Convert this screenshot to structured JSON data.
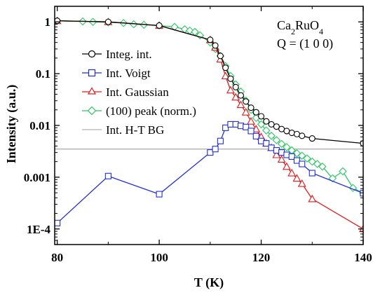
{
  "chart_data": {
    "type": "scatter",
    "xlabel": "T (K)",
    "ylabel": "Intensity (a.u.)",
    "xlim": [
      79.5,
      140
    ],
    "ylim": [
      5e-05,
      2
    ],
    "yscale": "log",
    "grid": false,
    "legend_position": "left-middle",
    "x_ticks": [
      80,
      100,
      120,
      140
    ],
    "x_tick_labels": [
      "80",
      "100",
      "120",
      "140"
    ],
    "y_ticks": [
      0.0001,
      0.001,
      0.01,
      0.1,
      1
    ],
    "y_tick_labels": [
      "1E-4",
      "0.001",
      "0.01",
      "0.1",
      "1"
    ],
    "annotation": {
      "compound": "Ca",
      "sub1": "2",
      "mid": "RuO",
      "sub2": "4",
      "q": "Q = (1 0 0)"
    },
    "series": [
      {
        "name": "Integ. int.",
        "color": "#000000",
        "marker": "circle",
        "x": [
          80,
          90,
          100,
          110,
          111,
          112,
          113,
          114,
          115,
          116,
          117,
          118,
          119,
          120,
          121,
          122,
          123,
          124,
          125,
          126,
          127,
          128,
          130,
          140
        ],
        "y": [
          1.05,
          1.0,
          0.85,
          0.45,
          0.35,
          0.22,
          0.13,
          0.08,
          0.055,
          0.038,
          0.029,
          0.022,
          0.018,
          0.015,
          0.012,
          0.0105,
          0.0095,
          0.0085,
          0.0078,
          0.0072,
          0.0068,
          0.0063,
          0.0056,
          0.0045
        ]
      },
      {
        "name": "Int. Voigt",
        "color": "#1f2fd6",
        "marker": "square",
        "x": [
          80,
          90,
          100,
          110,
          111,
          112,
          113,
          114,
          115,
          116,
          117,
          118,
          119,
          120,
          121,
          122,
          123,
          124,
          125,
          126,
          127,
          128,
          130,
          140
        ],
        "y": [
          0.00013,
          0.00105,
          0.00047,
          0.003,
          0.0035,
          0.005,
          0.009,
          0.0105,
          0.0105,
          0.0098,
          0.0093,
          0.0078,
          0.0062,
          0.005,
          0.0045,
          0.0037,
          0.0033,
          0.003,
          0.0027,
          0.0025,
          0.0021,
          0.0018,
          0.0012,
          0.00049
        ]
      },
      {
        "name": "Int. Gaussian",
        "color": "#e31a1c",
        "marker": "triangle",
        "x": [
          80,
          90,
          100,
          110,
          111,
          112,
          113,
          114,
          115,
          116,
          117,
          118,
          119,
          120,
          121,
          122,
          123,
          124,
          125,
          126,
          127,
          128,
          130,
          140
        ],
        "y": [
          1.05,
          1.0,
          0.85,
          0.45,
          0.32,
          0.19,
          0.09,
          0.048,
          0.035,
          0.025,
          0.018,
          0.012,
          0.0085,
          0.006,
          0.0045,
          0.0037,
          0.0027,
          0.0022,
          0.0016,
          0.0012,
          0.00095,
          0.00075,
          0.00038,
          0.0001
        ]
      },
      {
        "name": "(100) peak (norm.)",
        "color": "#2ec764",
        "marker": "diamond",
        "x": [
          80,
          85,
          87,
          90,
          93,
          95,
          97,
          100,
          103,
          105,
          106,
          107,
          108,
          110,
          111,
          112,
          113,
          114,
          115,
          116,
          117,
          118,
          119,
          120,
          121,
          122,
          123,
          124,
          125,
          126,
          127,
          128,
          129,
          130,
          131,
          132,
          134,
          136,
          138,
          140
        ],
        "y": [
          1.05,
          1.02,
          1.0,
          0.98,
          0.95,
          0.9,
          0.88,
          0.85,
          0.8,
          0.72,
          0.68,
          0.64,
          0.55,
          0.4,
          0.3,
          0.22,
          0.14,
          0.09,
          0.062,
          0.045,
          0.03,
          0.02,
          0.014,
          0.0105,
          0.008,
          0.0063,
          0.0052,
          0.0044,
          0.0038,
          0.0033,
          0.0029,
          0.0026,
          0.0023,
          0.002,
          0.0018,
          0.0016,
          0.00095,
          0.0013,
          0.00062,
          0.00049
        ]
      },
      {
        "name": "Int. H-T BG",
        "color": "#b0b0b0",
        "marker": "none",
        "x": [
          79.5,
          140
        ],
        "y": [
          0.0035,
          0.0035
        ]
      }
    ]
  }
}
